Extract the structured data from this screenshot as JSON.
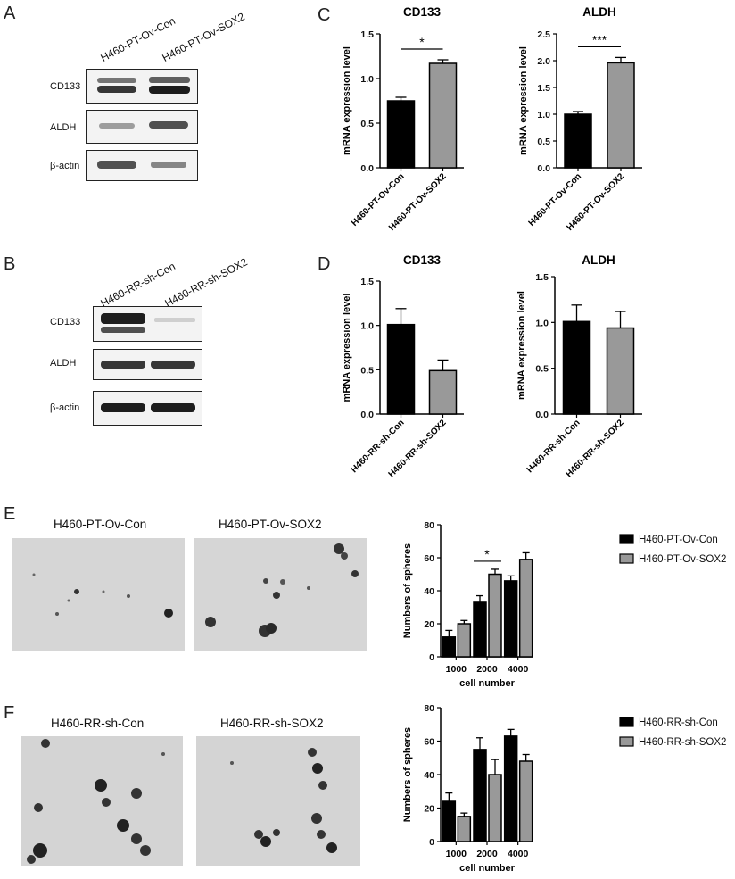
{
  "panels": {
    "A": "A",
    "B": "B",
    "C": "C",
    "D": "D",
    "E": "E",
    "F": "F"
  },
  "blot_A": {
    "lanes": [
      "H460-PT-Ov-Con",
      "H460-PT-Ov-SOX2"
    ],
    "rows": [
      "CD133",
      "ALDH",
      "β-actin"
    ]
  },
  "blot_B": {
    "lanes": [
      "H460-RR-sh-Con",
      "H460-RR-sh-SOX2"
    ],
    "rows": [
      "CD133",
      "ALDH",
      "β-actin"
    ]
  },
  "micro_E": {
    "left": "H460-PT-Ov-Con",
    "right": "H460-PT-Ov-SOX2"
  },
  "micro_F": {
    "left": "H460-RR-sh-Con",
    "right": "H460-RR-sh-SOX2"
  },
  "chart_data": [
    {
      "id": "C-CD133",
      "type": "bar",
      "title": "CD133",
      "ylabel": "mRNA expression level",
      "categories": [
        "H460-PT-Ov-Con",
        "H460-PT-Ov-SOX2"
      ],
      "values": [
        0.75,
        1.17
      ],
      "errors": [
        0.04,
        0.04
      ],
      "colors": [
        "#000000",
        "#999999"
      ],
      "ylim": [
        0,
        1.5
      ],
      "yticks": [
        "0.0",
        "0.5",
        "1.0",
        "1.5"
      ],
      "significance": "*"
    },
    {
      "id": "C-ALDH",
      "type": "bar",
      "title": "ALDH",
      "ylabel": "mRNA expression level",
      "categories": [
        "H460-PT-Ov-Con",
        "H460-PT-Ov-SOX2"
      ],
      "values": [
        1.0,
        1.96
      ],
      "errors": [
        0.05,
        0.1
      ],
      "colors": [
        "#000000",
        "#999999"
      ],
      "ylim": [
        0,
        2.5
      ],
      "yticks": [
        "0.0",
        "0.5",
        "1.0",
        "1.5",
        "2.0",
        "2.5"
      ],
      "significance": "***"
    },
    {
      "id": "D-CD133",
      "type": "bar",
      "title": "CD133",
      "ylabel": "mRNA expression level",
      "categories": [
        "H460-RR-sh-Con",
        "H460-RR-sh-SOX2"
      ],
      "values": [
        1.01,
        0.49
      ],
      "errors": [
        0.18,
        0.12
      ],
      "colors": [
        "#000000",
        "#999999"
      ],
      "ylim": [
        0,
        1.5
      ],
      "yticks": [
        "0.0",
        "0.5",
        "1.0",
        "1.5"
      ],
      "significance": ""
    },
    {
      "id": "D-ALDH",
      "type": "bar",
      "title": "ALDH",
      "ylabel": "mRNA expression level",
      "categories": [
        "H460-RR-sh-Con",
        "H460-RR-sh-SOX2"
      ],
      "values": [
        1.01,
        0.94
      ],
      "errors": [
        0.18,
        0.18
      ],
      "colors": [
        "#000000",
        "#999999"
      ],
      "ylim": [
        0,
        1.5
      ],
      "yticks": [
        "0.0",
        "0.5",
        "1.0",
        "1.5"
      ],
      "significance": ""
    },
    {
      "id": "E-spheres",
      "type": "bar",
      "title": "",
      "ylabel": "Numbers of spheres",
      "xlabel": "cell number",
      "categories": [
        "1000",
        "2000",
        "4000"
      ],
      "series": [
        {
          "name": "H460-PT-Ov-Con",
          "values": [
            12,
            33,
            46
          ],
          "errors": [
            4,
            4,
            3
          ],
          "color": "#000000"
        },
        {
          "name": "H460-PT-Ov-SOX2",
          "values": [
            20,
            50,
            59
          ],
          "errors": [
            2,
            3,
            4
          ],
          "color": "#999999"
        }
      ],
      "ylim": [
        0,
        80
      ],
      "yticks": [
        "0",
        "20",
        "40",
        "60",
        "80"
      ],
      "significance": [
        {
          "category": "2000",
          "label": "*"
        }
      ],
      "legend": "right"
    },
    {
      "id": "F-spheres",
      "type": "bar",
      "title": "",
      "ylabel": "Numbers of spheres",
      "xlabel": "cell number",
      "categories": [
        "1000",
        "2000",
        "4000"
      ],
      "series": [
        {
          "name": "H460-RR-sh-Con",
          "values": [
            24,
            55,
            63
          ],
          "errors": [
            5,
            7,
            4
          ],
          "color": "#000000"
        },
        {
          "name": "H460-RR-sh-SOX2",
          "values": [
            15,
            40,
            48
          ],
          "errors": [
            2,
            9,
            4
          ],
          "color": "#999999"
        }
      ],
      "ylim": [
        0,
        80
      ],
      "yticks": [
        "0",
        "20",
        "40",
        "60",
        "80"
      ],
      "legend": "right"
    }
  ]
}
